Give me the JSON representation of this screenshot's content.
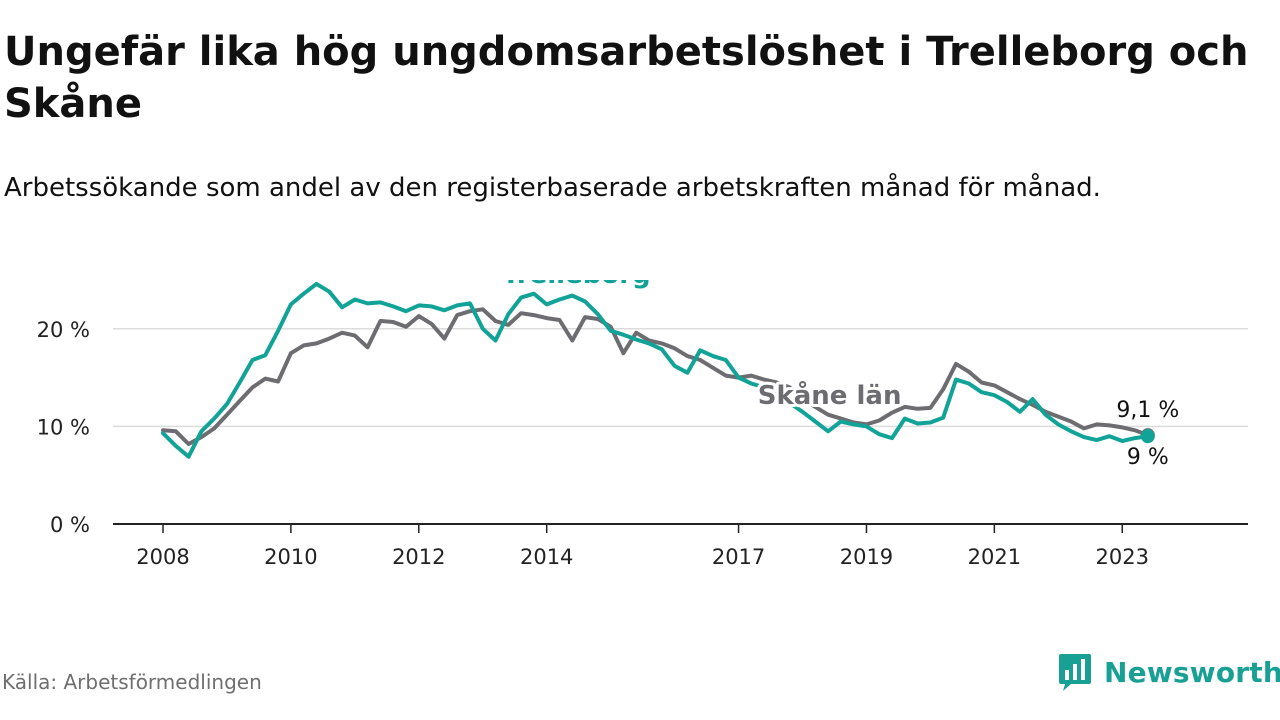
{
  "title": "Ungefär lika hög ungdomsarbetslöshet i Trelleborg och Skåne",
  "subtitle": "Arbetssökande som andel av den registerbaserade arbetskraften månad för månad.",
  "source": "Källa: Arbetsförmedlingen",
  "brand": "Newsworthy",
  "colors": {
    "trelleborg": "#12a398",
    "skane": "#6d6c70",
    "grid": "#dcdcdc",
    "axis": "#222222"
  },
  "chart_data": {
    "type": "line",
    "title": "Ungefär lika hög ungdomsarbetslöshet i Trelleborg och Skåne",
    "xlabel": "",
    "ylabel": "",
    "xlim": [
      2008.0,
      2024.2
    ],
    "ylim": [
      0,
      25
    ],
    "y_ticks": [
      0,
      10,
      20
    ],
    "y_tick_labels": [
      "0 %",
      "10 %",
      "20 %"
    ],
    "x_ticks": [
      2008,
      2010,
      2012,
      2014,
      2017,
      2019,
      2021,
      2023
    ],
    "x_tick_labels": [
      "2008",
      "2010",
      "2012",
      "2014",
      "2017",
      "2019",
      "2021",
      "2023"
    ],
    "grid": true,
    "series": [
      {
        "name": "Skåne län",
        "color": "#6d6c70",
        "end_label": "9,1 %",
        "points": [
          [
            2008.0,
            9.6
          ],
          [
            2008.2,
            9.5
          ],
          [
            2008.4,
            8.2
          ],
          [
            2008.6,
            8.9
          ],
          [
            2008.8,
            9.8
          ],
          [
            2009.0,
            11.2
          ],
          [
            2009.2,
            12.6
          ],
          [
            2009.4,
            14.0
          ],
          [
            2009.6,
            14.9
          ],
          [
            2009.8,
            14.6
          ],
          [
            2010.0,
            17.5
          ],
          [
            2010.2,
            18.3
          ],
          [
            2010.4,
            18.5
          ],
          [
            2010.6,
            19.0
          ],
          [
            2010.8,
            19.6
          ],
          [
            2011.0,
            19.3
          ],
          [
            2011.2,
            18.1
          ],
          [
            2011.4,
            20.8
          ],
          [
            2011.6,
            20.7
          ],
          [
            2011.8,
            20.2
          ],
          [
            2012.0,
            21.3
          ],
          [
            2012.2,
            20.5
          ],
          [
            2012.4,
            19.0
          ],
          [
            2012.6,
            21.4
          ],
          [
            2012.8,
            21.8
          ],
          [
            2013.0,
            22.0
          ],
          [
            2013.2,
            20.8
          ],
          [
            2013.4,
            20.4
          ],
          [
            2013.6,
            21.6
          ],
          [
            2013.8,
            21.4
          ],
          [
            2014.0,
            21.1
          ],
          [
            2014.2,
            20.9
          ],
          [
            2014.4,
            18.8
          ],
          [
            2014.6,
            21.2
          ],
          [
            2014.8,
            21.0
          ],
          [
            2015.0,
            20.2
          ],
          [
            2015.2,
            17.5
          ],
          [
            2015.4,
            19.6
          ],
          [
            2015.6,
            18.8
          ],
          [
            2015.8,
            18.5
          ],
          [
            2016.0,
            18.0
          ],
          [
            2016.2,
            17.2
          ],
          [
            2016.4,
            16.8
          ],
          [
            2016.6,
            16.0
          ],
          [
            2016.8,
            15.2
          ],
          [
            2017.0,
            15.0
          ],
          [
            2017.2,
            15.2
          ],
          [
            2017.4,
            14.8
          ],
          [
            2017.6,
            14.5
          ],
          [
            2017.8,
            14.0
          ],
          [
            2018.0,
            12.8
          ],
          [
            2018.2,
            12.0
          ],
          [
            2018.4,
            11.2
          ],
          [
            2018.6,
            10.8
          ],
          [
            2018.8,
            10.4
          ],
          [
            2019.0,
            10.2
          ],
          [
            2019.2,
            10.6
          ],
          [
            2019.4,
            11.4
          ],
          [
            2019.6,
            12.0
          ],
          [
            2019.8,
            11.8
          ],
          [
            2020.0,
            11.9
          ],
          [
            2020.2,
            13.8
          ],
          [
            2020.4,
            16.4
          ],
          [
            2020.6,
            15.6
          ],
          [
            2020.8,
            14.5
          ],
          [
            2021.0,
            14.2
          ],
          [
            2021.2,
            13.5
          ],
          [
            2021.4,
            12.8
          ],
          [
            2021.6,
            12.2
          ],
          [
            2021.8,
            11.5
          ],
          [
            2022.0,
            11.0
          ],
          [
            2022.2,
            10.5
          ],
          [
            2022.4,
            9.8
          ],
          [
            2022.6,
            10.2
          ],
          [
            2022.8,
            10.1
          ],
          [
            2023.0,
            9.9
          ],
          [
            2023.2,
            9.6
          ],
          [
            2023.4,
            9.1
          ]
        ]
      },
      {
        "name": "Trelleborg",
        "color": "#12a398",
        "end_label": "9 %",
        "points": [
          [
            2008.0,
            9.3
          ],
          [
            2008.2,
            8.0
          ],
          [
            2008.4,
            6.9
          ],
          [
            2008.6,
            9.5
          ],
          [
            2008.8,
            10.8
          ],
          [
            2009.0,
            12.3
          ],
          [
            2009.2,
            14.5
          ],
          [
            2009.4,
            16.8
          ],
          [
            2009.6,
            17.3
          ],
          [
            2009.8,
            19.8
          ],
          [
            2010.0,
            22.5
          ],
          [
            2010.2,
            23.6
          ],
          [
            2010.4,
            24.6
          ],
          [
            2010.6,
            23.8
          ],
          [
            2010.8,
            22.2
          ],
          [
            2011.0,
            23.0
          ],
          [
            2011.2,
            22.6
          ],
          [
            2011.4,
            22.7
          ],
          [
            2011.6,
            22.3
          ],
          [
            2011.8,
            21.8
          ],
          [
            2012.0,
            22.4
          ],
          [
            2012.2,
            22.3
          ],
          [
            2012.4,
            21.9
          ],
          [
            2012.6,
            22.4
          ],
          [
            2012.8,
            22.6
          ],
          [
            2013.0,
            20.0
          ],
          [
            2013.2,
            18.8
          ],
          [
            2013.4,
            21.5
          ],
          [
            2013.6,
            23.2
          ],
          [
            2013.8,
            23.6
          ],
          [
            2014.0,
            22.5
          ],
          [
            2014.2,
            23.0
          ],
          [
            2014.4,
            23.4
          ],
          [
            2014.6,
            22.8
          ],
          [
            2014.8,
            21.5
          ],
          [
            2015.0,
            19.8
          ],
          [
            2015.2,
            19.4
          ],
          [
            2015.4,
            18.9
          ],
          [
            2015.6,
            18.5
          ],
          [
            2015.8,
            17.9
          ],
          [
            2016.0,
            16.2
          ],
          [
            2016.2,
            15.5
          ],
          [
            2016.4,
            17.8
          ],
          [
            2016.6,
            17.2
          ],
          [
            2016.8,
            16.8
          ],
          [
            2017.0,
            15.0
          ],
          [
            2017.2,
            14.4
          ],
          [
            2017.4,
            14.0
          ],
          [
            2017.6,
            13.2
          ],
          [
            2017.8,
            12.4
          ],
          [
            2018.0,
            11.5
          ],
          [
            2018.2,
            10.5
          ],
          [
            2018.4,
            9.5
          ],
          [
            2018.6,
            10.5
          ],
          [
            2018.8,
            10.2
          ],
          [
            2019.0,
            10.0
          ],
          [
            2019.2,
            9.2
          ],
          [
            2019.4,
            8.8
          ],
          [
            2019.6,
            10.8
          ],
          [
            2019.8,
            10.3
          ],
          [
            2020.0,
            10.4
          ],
          [
            2020.2,
            10.9
          ],
          [
            2020.4,
            14.8
          ],
          [
            2020.6,
            14.4
          ],
          [
            2020.8,
            13.5
          ],
          [
            2021.0,
            13.2
          ],
          [
            2021.2,
            12.5
          ],
          [
            2021.4,
            11.5
          ],
          [
            2021.6,
            12.8
          ],
          [
            2021.8,
            11.2
          ],
          [
            2022.0,
            10.2
          ],
          [
            2022.2,
            9.5
          ],
          [
            2022.4,
            8.9
          ],
          [
            2022.6,
            8.6
          ],
          [
            2022.8,
            9.0
          ],
          [
            2023.0,
            8.5
          ],
          [
            2023.2,
            8.8
          ],
          [
            2023.4,
            9.0
          ]
        ]
      }
    ],
    "annotations": [
      {
        "series": "Trelleborg",
        "text": "Trelleborg",
        "at": [
          2013.3,
          24.7
        ]
      },
      {
        "series": "Skåne län",
        "text": "Skåne län",
        "at": [
          2017.3,
          12.3
        ]
      }
    ]
  }
}
